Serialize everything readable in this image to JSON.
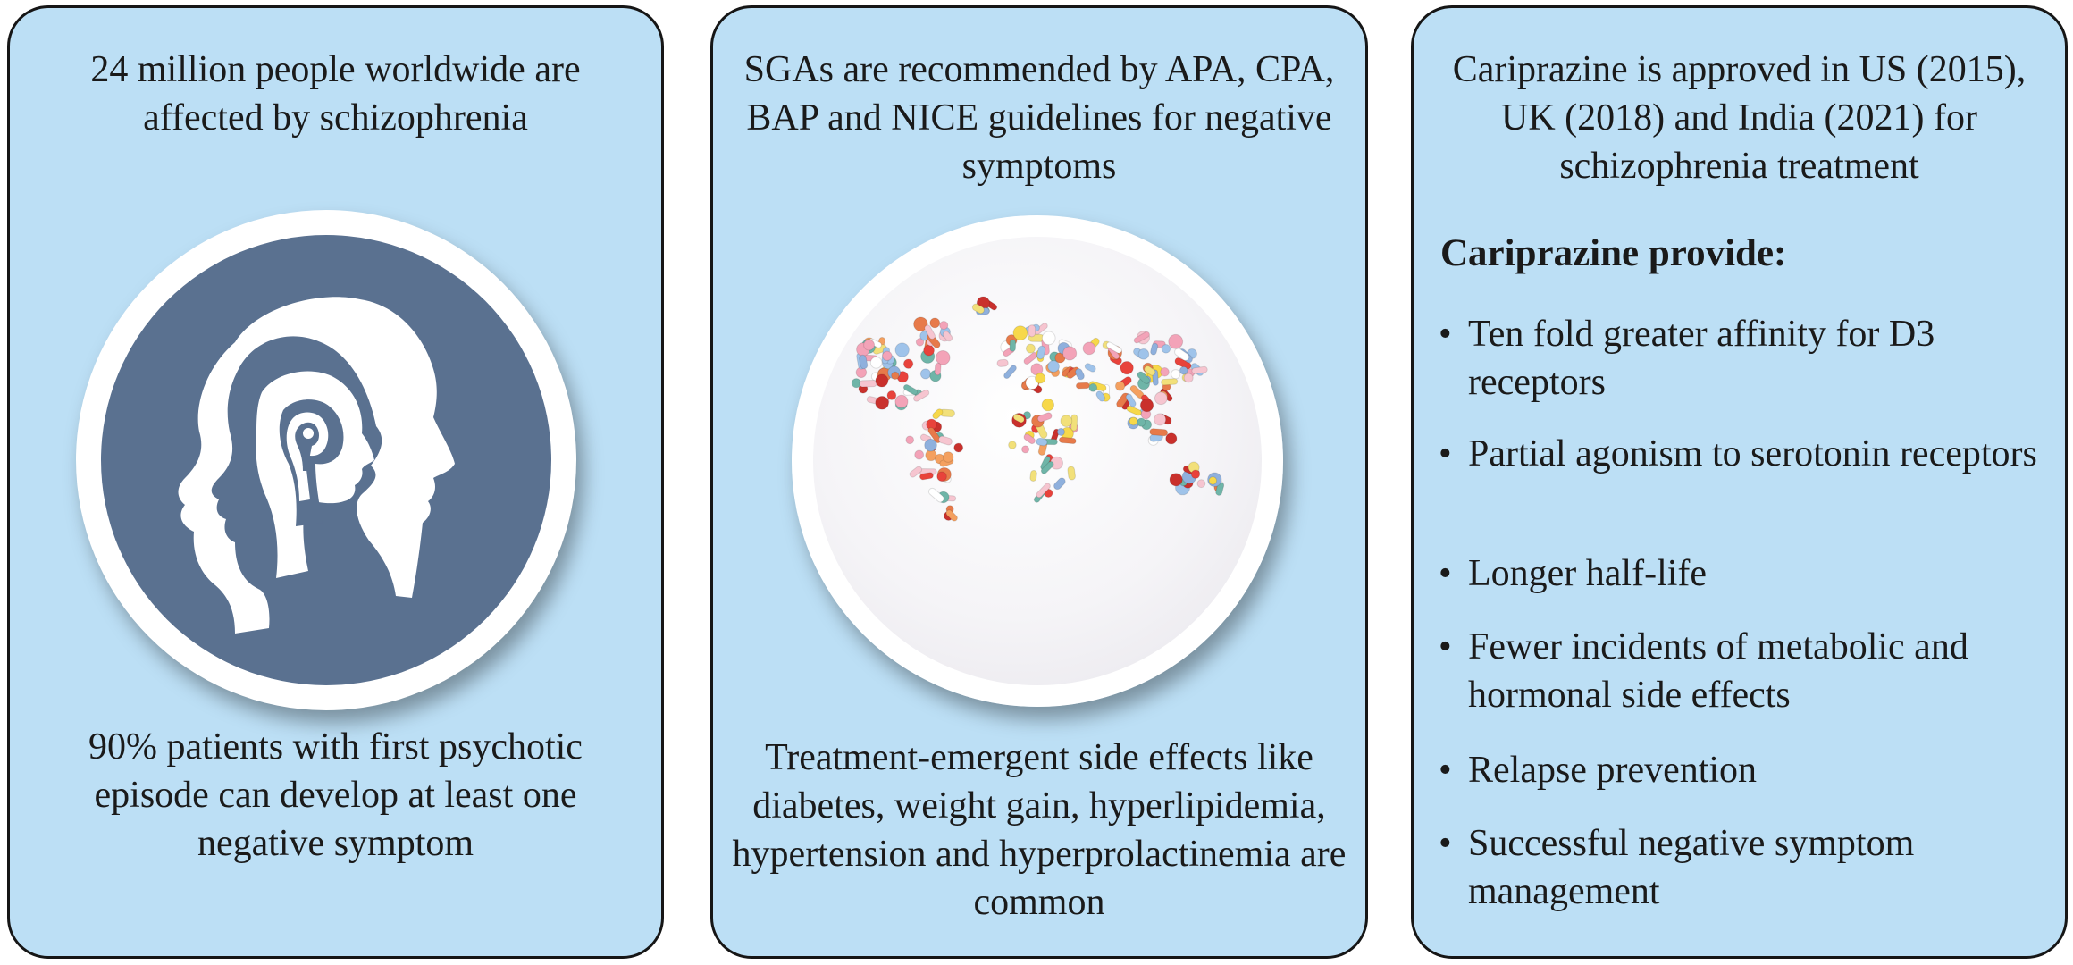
{
  "panel1": {
    "top_text": "24 million people worldwide are affected by schizophrenia",
    "bottom_text": "90% patients with first psychotic episode can develop at least one negative symptom",
    "icon": "head-silhouette-icon"
  },
  "panel2": {
    "top_text": "SGAs are recommended by APA, CPA, BAP and NICE guidelines for negative symptoms",
    "bottom_text": "Treatment-emergent side effects like diabetes, weight gain, hyperlipidemia, hypertension and hyperprolactinemia are common",
    "icon": "pill-world-map-icon"
  },
  "panel3": {
    "top_text": "Cariprazine is approved in US (2015), UK (2018) and India (2021) for schizophrenia treatment",
    "heading": "Cariprazine provide:",
    "items": [
      "Ten fold greater affinity for D3 receptors",
      "Partial agonism to serotonin receptors",
      "Longer half-life",
      "Fewer incidents of metabolic and hormonal side effects",
      "Relapse prevention",
      "Successful negative symptom management"
    ]
  },
  "colors": {
    "panel_bg": "#bcdff5",
    "border": "#161616",
    "head_circle": "#5a7190"
  }
}
